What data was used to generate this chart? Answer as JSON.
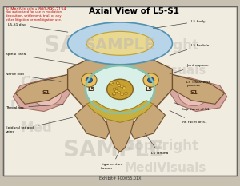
{
  "title": "Axial View of L5-S1",
  "exhibit_label": "Exhibit# 400055.01X",
  "copyright_text": "© MediVisuals • 800-899-2154",
  "not_authorized": "Not authorized for use in mediation,\ndeposition, settlement, trial, or any\nother litigation or nonlitigation use.",
  "colors": {
    "disc_outer": "#b8d4e8",
    "disc_inner": "#e8d890",
    "vertebra_body": "#c8a878",
    "s1_pink": "#d8a8a0",
    "thecal_sac": "#88c0a8",
    "ligament": "#c8b040",
    "foramen_circle": "#e0c870",
    "copyright_color": "#cc0000",
    "title_color": "#000000",
    "watermark_color": "#c8c0b0",
    "bg_color": "#f0ece0"
  },
  "annotations_left": [
    {
      "text": "L5-S1 disc",
      "tpos": [
        0.03,
        0.87
      ],
      "aend": [
        0.29,
        0.83
      ]
    },
    {
      "text": "Spinal canal",
      "tpos": [
        0.02,
        0.71
      ],
      "aend": [
        0.34,
        0.65
      ]
    },
    {
      "text": "Nerve root",
      "tpos": [
        0.02,
        0.6
      ],
      "aend": [
        0.26,
        0.56
      ]
    },
    {
      "text": "Thecal sac",
      "tpos": [
        0.02,
        0.42
      ],
      "aend": [
        0.27,
        0.44
      ]
    },
    {
      "text": "Epidural fat and\nveins",
      "tpos": [
        0.02,
        0.3
      ],
      "aend": [
        0.31,
        0.37
      ]
    }
  ],
  "annotations_right": [
    {
      "text": "L5 body",
      "tpos": [
        0.8,
        0.89
      ],
      "aend": [
        0.63,
        0.85
      ]
    },
    {
      "text": "L5 Pedicle",
      "tpos": [
        0.8,
        0.76
      ],
      "aend": [
        0.7,
        0.7
      ]
    },
    {
      "text": "Joint capsule",
      "tpos": [
        0.78,
        0.65
      ],
      "aend": [
        0.7,
        0.6
      ]
    },
    {
      "text": "L5 Transverse\nprocess",
      "tpos": [
        0.78,
        0.55
      ],
      "aend": [
        0.8,
        0.51
      ]
    },
    {
      "text": "Sup. facet of S1",
      "tpos": [
        0.76,
        0.41
      ],
      "aend": [
        0.72,
        0.45
      ]
    },
    {
      "text": "Inf. facet of S1",
      "tpos": [
        0.76,
        0.34
      ],
      "aend": [
        0.7,
        0.41
      ]
    },
    {
      "text": "L5 lamina",
      "tpos": [
        0.63,
        0.17
      ],
      "aend": [
        0.6,
        0.29
      ]
    },
    {
      "text": "Ligamentum\nflavum",
      "tpos": [
        0.42,
        0.1
      ],
      "aend": [
        0.5,
        0.19
      ]
    }
  ]
}
